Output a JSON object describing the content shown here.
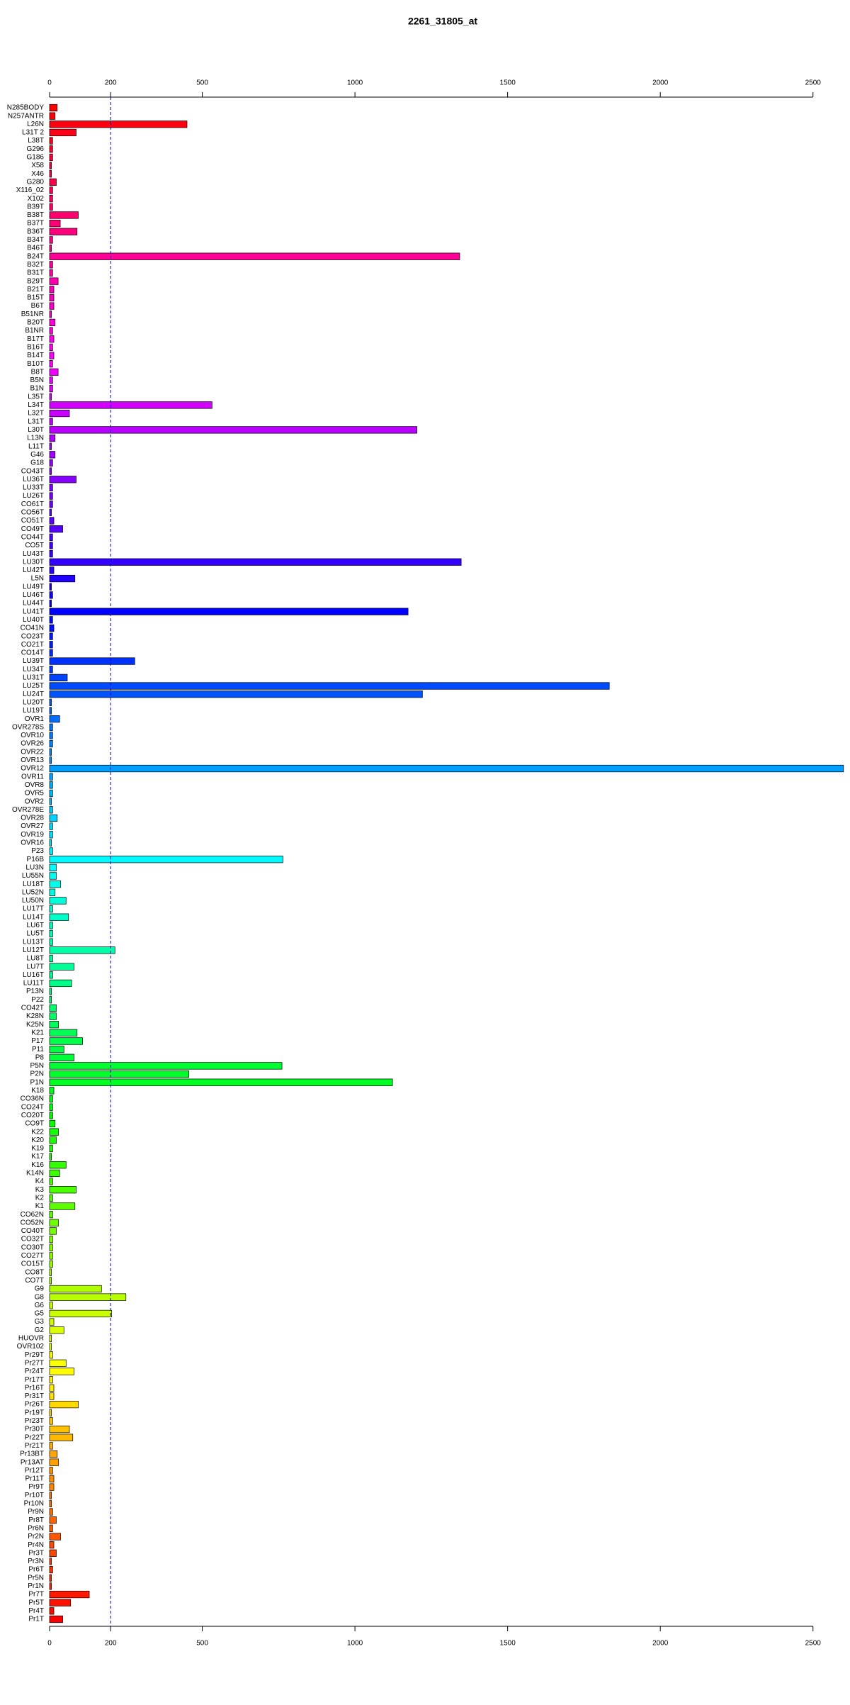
{
  "chart_data": {
    "type": "barh",
    "title": "2261_31805_at",
    "categories": [
      "N285BODY",
      "N257ANTR",
      "L26N",
      "L31T 2",
      "L38T",
      "G296",
      "G186",
      "X58",
      "X46",
      "G280",
      "X116_02",
      "X102",
      "B39T",
      "B38T",
      "B37T",
      "B36T",
      "B34T",
      "B46T",
      "B24T",
      "B32T",
      "B31T",
      "B29T",
      "B21T",
      "B15T",
      "B6T",
      "B51NR",
      "B20T",
      "B1NR",
      "B17T",
      "B16T",
      "B14T",
      "B10T",
      "B8T",
      "B5N",
      "B1N",
      "L35T",
      "L34T",
      "L32T",
      "L31T",
      "L30T",
      "L13N",
      "L11T",
      "G46",
      "G18",
      "CO43T",
      "LU36T",
      "LU33T",
      "LU26T",
      "CO61T",
      "CO56T",
      "CO51T",
      "CO49T",
      "CO44T",
      "CO5T",
      "LU43T",
      "LU30T",
      "LU42T",
      "L5N",
      "LU49T",
      "LU46T",
      "LU44T",
      "LU41T",
      "LU40T",
      "CO41N",
      "CO23T",
      "CO21T",
      "CO14T",
      "LU39T",
      "LU34T",
      "LU31T",
      "LU25T",
      "LU24T",
      "LU20T",
      "LU19T",
      "OVR1",
      "OVR278S",
      "OVR10",
      "OVR26",
      "OVR22",
      "OVR13",
      "OVR12",
      "OVR11",
      "OVR8",
      "OVR5",
      "OVR2",
      "OVR278E",
      "OVR28",
      "OVR27",
      "OVR19",
      "OVR16",
      "P23",
      "P16B",
      "LU3N",
      "LU55N",
      "LU18T",
      "LU52N",
      "LU50N",
      "LU17T",
      "LU14T",
      "LU6T",
      "LU5T",
      "LU13T",
      "LU12T",
      "LU8T",
      "LU7T",
      "LU16T",
      "LU11T",
      "P13N",
      "P22",
      "CO42T",
      "K28N",
      "K25N",
      "K21",
      "P17",
      "P11",
      "P8",
      "P5N",
      "P2N",
      "P1N",
      "K18",
      "CO36N",
      "CO24T",
      "CO20T",
      "CO9T",
      "K22",
      "K20",
      "K19",
      "K17",
      "K16",
      "K14N",
      "K4",
      "K3",
      "K2",
      "K1",
      "CO62N",
      "CO52N",
      "CO40T",
      "CO32T",
      "CO30T",
      "CO27T",
      "CO15T",
      "CO8T",
      "CO7T",
      "G9",
      "G8",
      "G6",
      "G5",
      "G3",
      "G2",
      "HUOVR",
      "OVR102",
      "Pr29T",
      "Pr27T",
      "Pr24T",
      "Pr17T",
      "Pr16T",
      "Pr31T",
      "Pr26T",
      "Pr19T",
      "Pr23T",
      "Pr30T",
      "Pr22T",
      "Pr21T",
      "Pr13BT",
      "Pr13AT",
      "Pr12T",
      "Pr11T",
      "Pr9T",
      "Pr10T",
      "Pr10N",
      "Pr9N",
      "Pr8T",
      "Pr6N",
      "Pr2N",
      "Pr4N",
      "Pr3T",
      "Pr3N",
      "Pr6T",
      "Pr5N",
      "Pr1N",
      "Pr7T",
      "Pr5T",
      "Pr4T",
      "Pr1T"
    ],
    "values": [
      25,
      18,
      450,
      87,
      10,
      10,
      10,
      6,
      6,
      22,
      10,
      10,
      10,
      94,
      35,
      90,
      10,
      6,
      1343,
      10,
      10,
      28,
      14,
      14,
      14,
      6,
      18,
      10,
      14,
      10,
      14,
      10,
      28,
      10,
      10,
      6,
      532,
      65,
      10,
      1203,
      18,
      6,
      18,
      10,
      6,
      87,
      10,
      10,
      10,
      6,
      14,
      43,
      10,
      10,
      10,
      1348,
      14,
      83,
      6,
      10,
      6,
      1174,
      10,
      14,
      10,
      10,
      10,
      279,
      10,
      58,
      1833,
      1221,
      6,
      6,
      33,
      10,
      10,
      10,
      6,
      6,
      2600,
      10,
      10,
      10,
      6,
      10,
      25,
      10,
      10,
      6,
      10,
      764,
      22,
      22,
      36,
      18,
      54,
      10,
      62,
      10,
      10,
      10,
      214,
      10,
      80,
      10,
      72,
      6,
      6,
      22,
      22,
      29,
      90,
      108,
      47,
      80,
      761,
      456,
      1123,
      14,
      10,
      10,
      10,
      18,
      29,
      22,
      10,
      6,
      54,
      33,
      10,
      87,
      10,
      83,
      10,
      29,
      22,
      10,
      10,
      10,
      10,
      6,
      6,
      170,
      250,
      10,
      203,
      14,
      47,
      6,
      6,
      10,
      54,
      80,
      10,
      14,
      14,
      94,
      6,
      10,
      65,
      76,
      10,
      25,
      29,
      10,
      14,
      14,
      6,
      6,
      10,
      22,
      10,
      36,
      14,
      22,
      6,
      10,
      6,
      6,
      130,
      69,
      14,
      43
    ],
    "color_stops": [
      "#ff0000",
      "#ff00ff",
      "#0000ff",
      "#00ffff",
      "#00ff00",
      "#ffff00",
      "#ff0000"
    ],
    "reference_line": 200,
    "reference_color": "#0000cc",
    "xlim": [
      0,
      2605
    ],
    "xticks": [
      0,
      200,
      500,
      1000,
      1500,
      2000,
      2500
    ]
  }
}
